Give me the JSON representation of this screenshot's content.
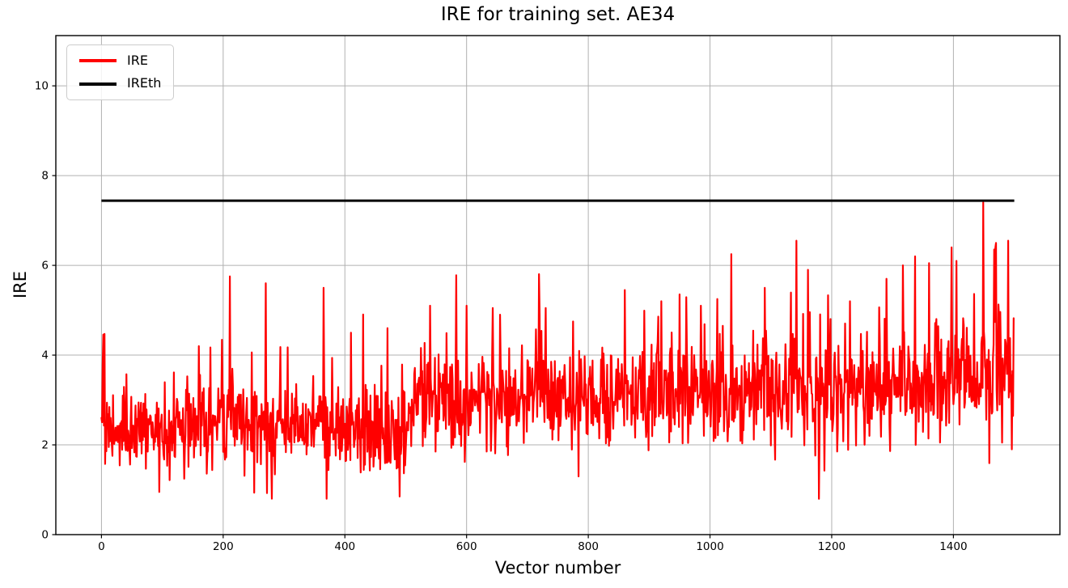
{
  "chart_data": {
    "type": "line",
    "title": "IRE for training set. AE34",
    "xlabel": "Vector number",
    "ylabel": "IRE",
    "xlim": [
      -75,
      1575
    ],
    "ylim": [
      0,
      11.12
    ],
    "xticks": [
      0,
      200,
      400,
      600,
      800,
      1000,
      1200,
      1400
    ],
    "yticks": [
      0,
      2,
      4,
      6,
      8,
      10
    ],
    "grid": true,
    "grid_color": "#b0b0b0",
    "background_color": "#ffffff",
    "legend": {
      "position": "upper-left",
      "entries": [
        "IRE",
        "IREth"
      ]
    },
    "series": [
      {
        "name": "IRE",
        "type": "noisy-line",
        "color": "#ff0000",
        "n_points": 1500,
        "x_start": 0,
        "x_end": 1499,
        "y_range_typical": [
          0.78,
          6.4
        ],
        "baseline_trend": [
          [
            0,
            2.38
          ],
          [
            120,
            2.35
          ],
          [
            300,
            2.5
          ],
          [
            430,
            2.3
          ],
          [
            500,
            2.15
          ],
          [
            508,
            3.0
          ],
          [
            900,
            3.12
          ],
          [
            1200,
            3.25
          ],
          [
            1499,
            3.45
          ]
        ],
        "noise_sigma": [
          [
            0,
            0.5
          ],
          [
            500,
            0.52
          ],
          [
            510,
            0.55
          ],
          [
            1000,
            0.62
          ],
          [
            1499,
            0.68
          ]
        ],
        "spike_probability": 0.02,
        "seed": 34,
        "key_points": [
          [
            2,
            3.77
          ],
          [
            95,
            0.95
          ],
          [
            160,
            4.2
          ],
          [
            270,
            5.6
          ],
          [
            280,
            0.8
          ],
          [
            365,
            5.5
          ],
          [
            370,
            0.8
          ],
          [
            410,
            4.5
          ],
          [
            470,
            4.6
          ],
          [
            490,
            0.85
          ],
          [
            540,
            5.1
          ],
          [
            583,
            5.78
          ],
          [
            600,
            5.1
          ],
          [
            655,
            4.9
          ],
          [
            730,
            5.05
          ],
          [
            775,
            4.75
          ],
          [
            860,
            5.45
          ],
          [
            920,
            5.2
          ],
          [
            985,
            5.1
          ],
          [
            1012,
            5.25
          ],
          [
            1035,
            6.25
          ],
          [
            1090,
            5.5
          ],
          [
            1142,
            6.55
          ],
          [
            1161,
            5.9
          ],
          [
            1230,
            5.2
          ],
          [
            1290,
            5.7
          ],
          [
            1317,
            6.0
          ],
          [
            1337,
            6.2
          ],
          [
            1360,
            6.05
          ],
          [
            1405,
            6.1
          ],
          [
            1449,
            7.4
          ],
          [
            1470,
            6.5
          ],
          [
            1490,
            6.55
          ]
        ]
      },
      {
        "name": "IREth",
        "type": "hline",
        "color": "#000000",
        "value": 7.44,
        "x_range": [
          0,
          1500
        ]
      }
    ]
  }
}
